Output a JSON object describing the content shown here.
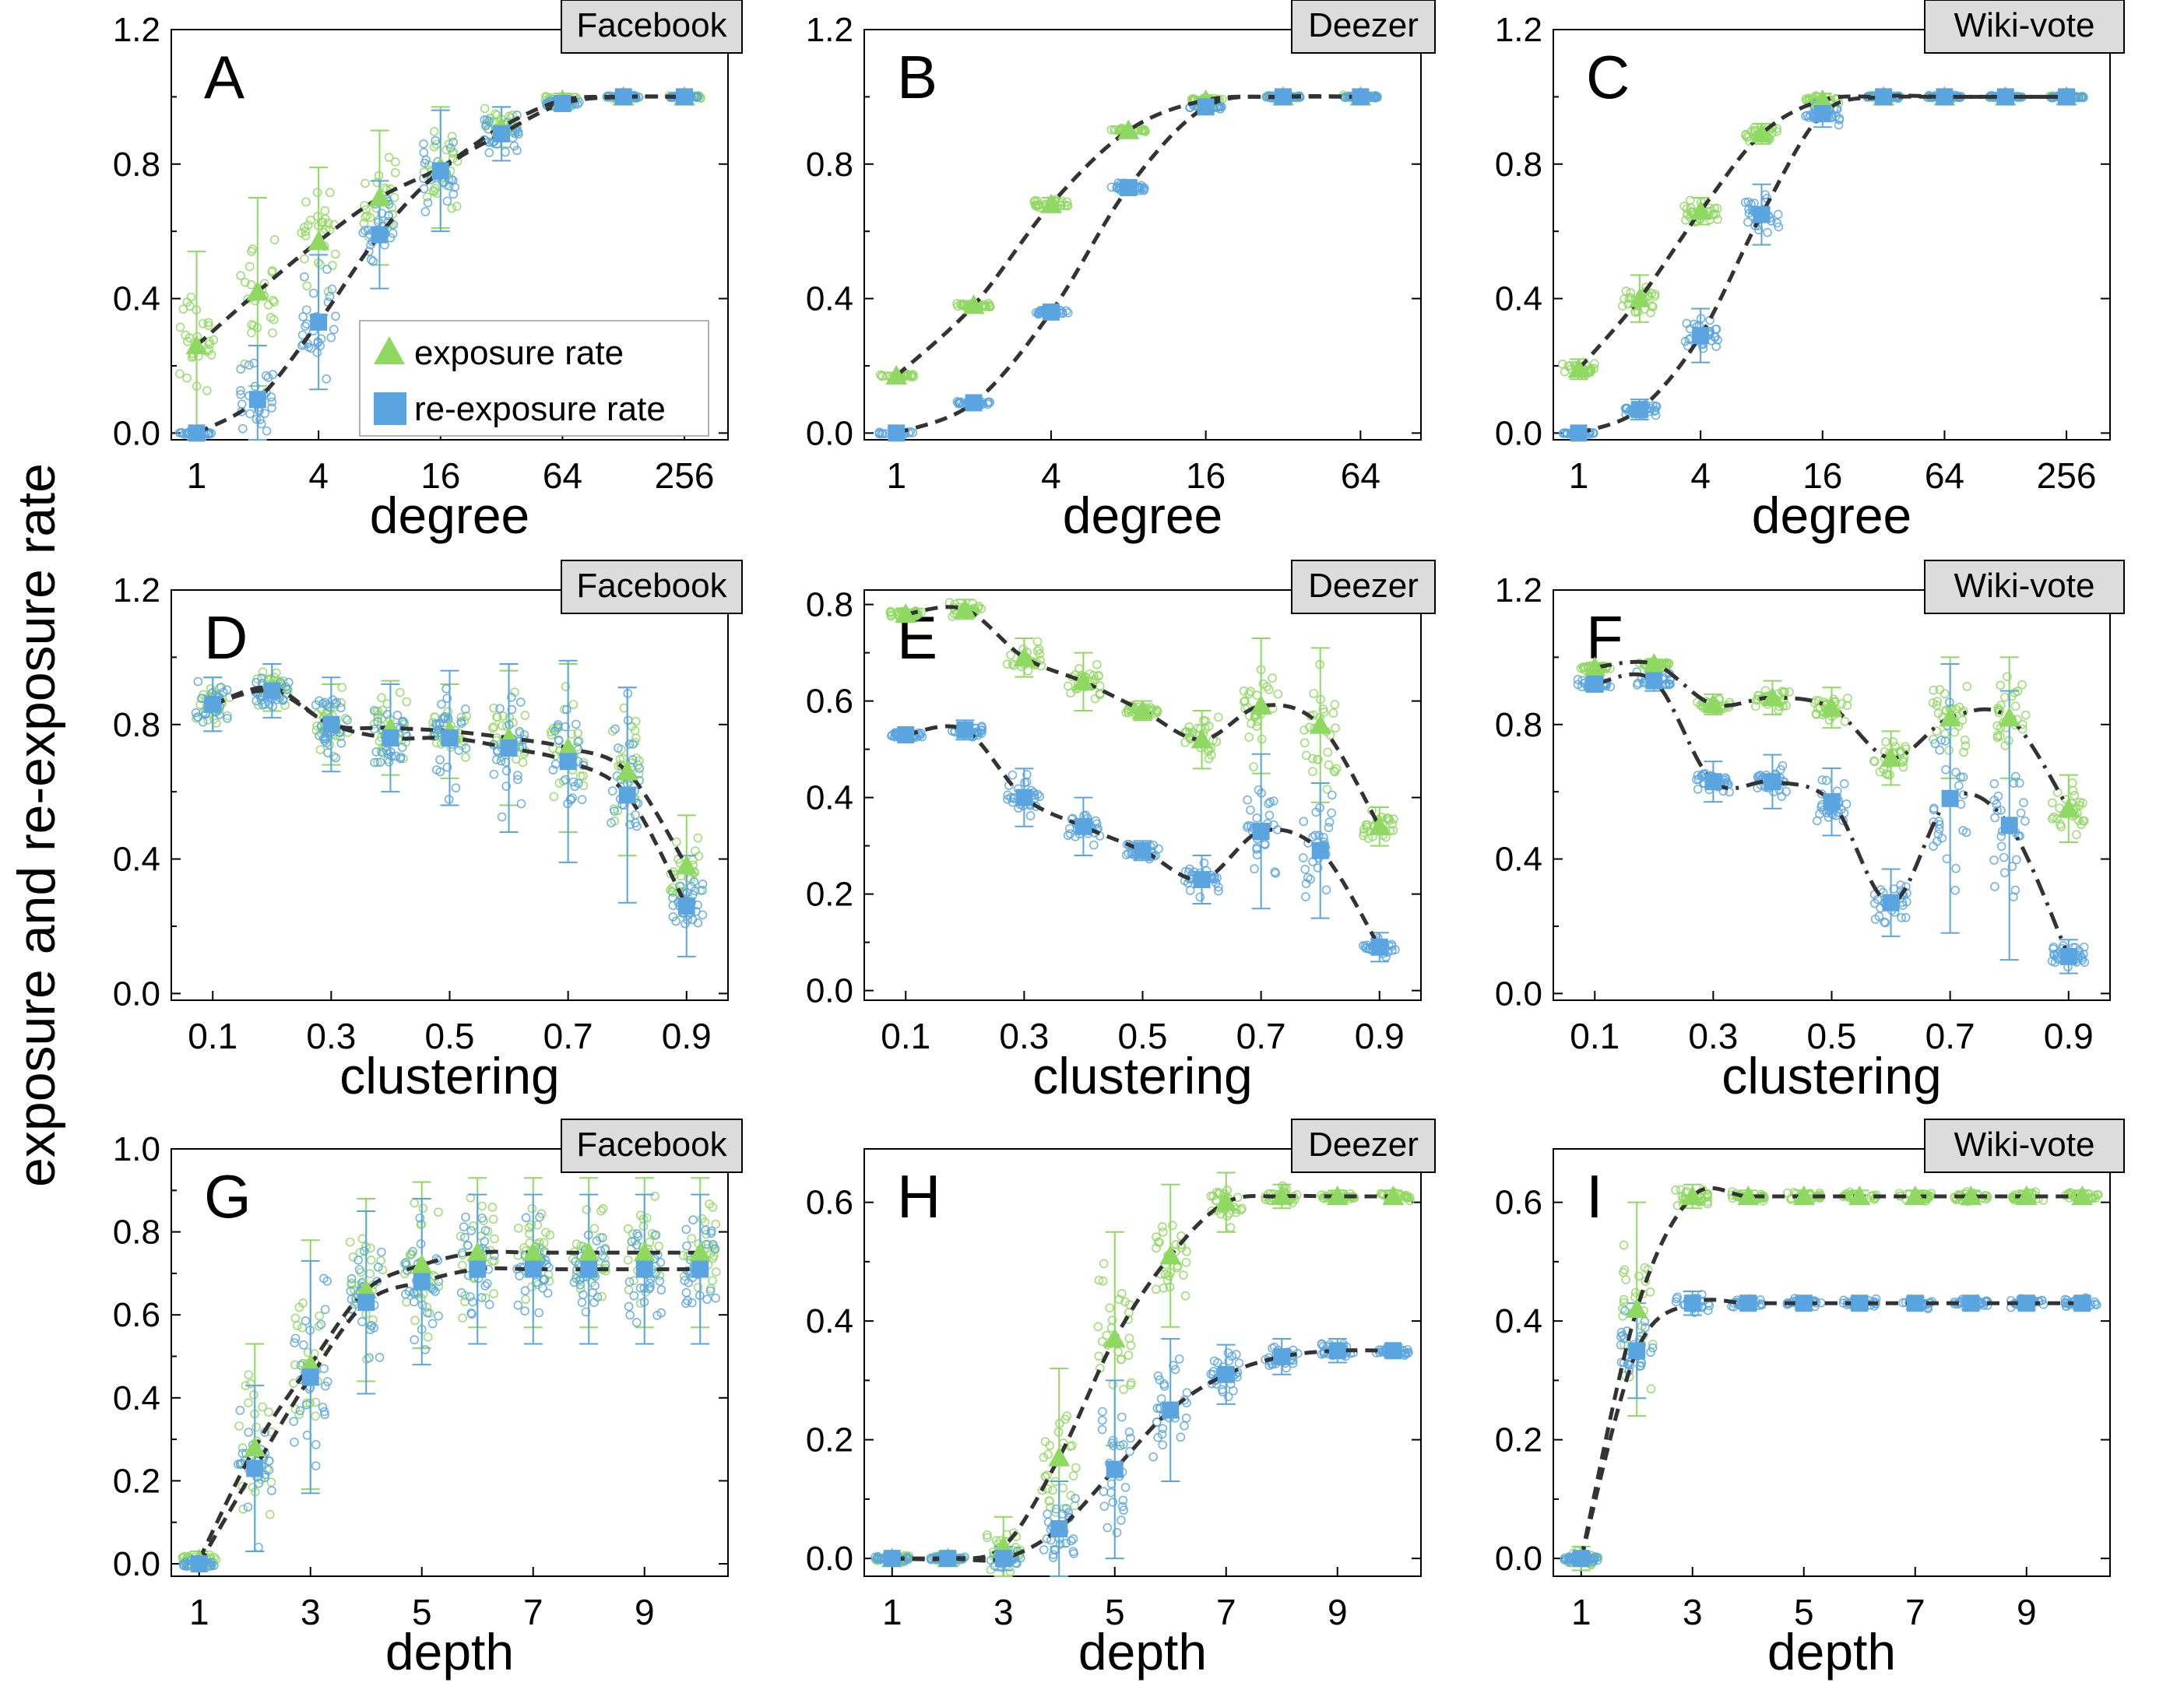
{
  "figure": {
    "y_label": "exposure and re-exposure rate",
    "legend": {
      "exposure": "exposure rate",
      "reexposure": "re-exposure rate"
    }
  },
  "colors": {
    "exposure": "#8fd862",
    "reexposure": "#5aa4e0",
    "fit": "#333333",
    "box": "#dcdcdc"
  },
  "chart_data": [
    {
      "id": "A",
      "panel_label": "A",
      "network": "Facebook",
      "type": "scatter",
      "xscale": "log2",
      "xlabel": "degree",
      "ylabel": "exposure and re-exposure rate",
      "xlim": [
        0.75,
        420
      ],
      "ylim": [
        -0.02,
        1.2
      ],
      "xticks": [
        1,
        4,
        16,
        64,
        256
      ],
      "xtick_labels": [
        "1",
        "4",
        "16",
        "64",
        "256"
      ],
      "yticks": [
        0,
        0.4,
        0.8,
        1.2
      ],
      "ytick_labels": [
        "0.0",
        "0.4",
        "0.8",
        "1.2"
      ],
      "fit_style": "dash",
      "legend": true,
      "series": [
        {
          "name": "exposure rate",
          "marker": "triangle",
          "x": [
            1,
            2,
            4,
            8,
            16,
            32,
            64,
            128,
            256
          ],
          "y": [
            0.26,
            0.42,
            0.57,
            0.7,
            0.79,
            0.91,
            0.99,
            1.0,
            1.0
          ],
          "spread": [
            0.28,
            0.28,
            0.22,
            0.2,
            0.18,
            0.06,
            0.02,
            0.0,
            0.0
          ]
        },
        {
          "name": "re-exposure rate",
          "marker": "square",
          "x": [
            1,
            2,
            4,
            8,
            16,
            32,
            64,
            128,
            256
          ],
          "y": [
            0.0,
            0.1,
            0.33,
            0.59,
            0.78,
            0.89,
            0.98,
            1.0,
            1.0
          ],
          "spread": [
            0.0,
            0.16,
            0.2,
            0.16,
            0.18,
            0.08,
            0.02,
            0.0,
            0.0
          ]
        }
      ]
    },
    {
      "id": "B",
      "panel_label": "B",
      "network": "Deezer",
      "type": "scatter",
      "xscale": "log2",
      "xlabel": "degree",
      "ylabel": "exposure and re-exposure rate",
      "xlim": [
        0.75,
        110
      ],
      "ylim": [
        -0.02,
        1.2
      ],
      "xticks": [
        1,
        4,
        16,
        64
      ],
      "xtick_labels": [
        "1",
        "4",
        "16",
        "64"
      ],
      "yticks": [
        0,
        0.4,
        0.8,
        1.2
      ],
      "ytick_labels": [
        "0.0",
        "0.4",
        "0.8",
        "1.2"
      ],
      "fit_style": "dash",
      "legend": false,
      "series": [
        {
          "name": "exposure rate",
          "marker": "triangle",
          "x": [
            1,
            2,
            4,
            8,
            16,
            32,
            64
          ],
          "y": [
            0.17,
            0.38,
            0.68,
            0.9,
            0.99,
            1.0,
            1.0
          ],
          "spread": [
            0.01,
            0.01,
            0.02,
            0.01,
            0.01,
            0.0,
            0.0
          ]
        },
        {
          "name": "re-exposure rate",
          "marker": "square",
          "x": [
            1,
            2,
            4,
            8,
            16,
            32,
            64
          ],
          "y": [
            0.0,
            0.09,
            0.36,
            0.73,
            0.97,
            1.0,
            1.0
          ],
          "spread": [
            0.0,
            0.01,
            0.01,
            0.02,
            0.01,
            0.0,
            0.0
          ]
        }
      ]
    },
    {
      "id": "C",
      "panel_label": "C",
      "network": "Wiki-vote",
      "type": "scatter",
      "xscale": "log2",
      "xlabel": "degree",
      "ylabel": "exposure and re-exposure rate",
      "xlim": [
        0.75,
        420
      ],
      "ylim": [
        -0.02,
        1.2
      ],
      "xticks": [
        1,
        4,
        16,
        64,
        256
      ],
      "xtick_labels": [
        "1",
        "4",
        "16",
        "64",
        "256"
      ],
      "yticks": [
        0,
        0.4,
        0.8,
        1.2
      ],
      "ytick_labels": [
        "0.0",
        "0.4",
        "0.8",
        "1.2"
      ],
      "fit_style": "dash",
      "legend": false,
      "series": [
        {
          "name": "exposure rate",
          "marker": "triangle",
          "x": [
            1,
            2,
            4,
            8,
            16,
            32,
            64,
            128,
            256
          ],
          "y": [
            0.19,
            0.4,
            0.66,
            0.89,
            0.99,
            1.0,
            1.0,
            1.0,
            1.0
          ],
          "spread": [
            0.03,
            0.07,
            0.04,
            0.03,
            0.02,
            0.0,
            0.0,
            0.0,
            0.0
          ]
        },
        {
          "name": "re-exposure rate",
          "marker": "square",
          "x": [
            1,
            2,
            4,
            8,
            16,
            32,
            64,
            128,
            256
          ],
          "y": [
            0.0,
            0.07,
            0.29,
            0.65,
            0.95,
            1.0,
            1.0,
            1.0,
            1.0
          ],
          "spread": [
            0.0,
            0.03,
            0.08,
            0.09,
            0.04,
            0.0,
            0.0,
            0.0,
            0.0
          ]
        }
      ]
    },
    {
      "id": "D",
      "panel_label": "D",
      "network": "Facebook",
      "type": "scatter",
      "xscale": "linear",
      "xlabel": "clustering",
      "ylabel": "exposure and re-exposure rate",
      "xlim": [
        0.03,
        0.97
      ],
      "ylim": [
        -0.02,
        1.2
      ],
      "xticks": [
        0.1,
        0.3,
        0.5,
        0.7,
        0.9
      ],
      "xtick_labels": [
        "0.1",
        "0.3",
        "0.5",
        "0.7",
        "0.9"
      ],
      "yticks": [
        0,
        0.4,
        0.8,
        1.2
      ],
      "ytick_labels": [
        "0.0",
        "0.4",
        "0.8",
        "1.2"
      ],
      "fit_style": "dash",
      "legend": false,
      "series": [
        {
          "name": "exposure rate",
          "marker": "triangle",
          "x": [
            0.1,
            0.2,
            0.3,
            0.4,
            0.5,
            0.6,
            0.7,
            0.8,
            0.9
          ],
          "y": [
            0.86,
            0.91,
            0.8,
            0.79,
            0.78,
            0.76,
            0.73,
            0.66,
            0.38
          ],
          "spread": [
            0.08,
            0.07,
            0.12,
            0.14,
            0.14,
            0.2,
            0.25,
            0.25,
            0.15
          ]
        },
        {
          "name": "re-exposure rate",
          "marker": "square",
          "x": [
            0.1,
            0.2,
            0.3,
            0.4,
            0.5,
            0.6,
            0.7,
            0.8,
            0.9
          ],
          "y": [
            0.86,
            0.9,
            0.8,
            0.76,
            0.76,
            0.73,
            0.69,
            0.59,
            0.26
          ],
          "spread": [
            0.08,
            0.08,
            0.14,
            0.16,
            0.2,
            0.25,
            0.3,
            0.32,
            0.15
          ]
        }
      ]
    },
    {
      "id": "E",
      "panel_label": "E",
      "network": "Deezer",
      "type": "scatter",
      "xscale": "linear",
      "xlabel": "clustering",
      "ylabel": "exposure and re-exposure rate",
      "xlim": [
        0.03,
        0.97
      ],
      "ylim": [
        -0.02,
        0.83
      ],
      "xticks": [
        0.1,
        0.3,
        0.5,
        0.7,
        0.9
      ],
      "xtick_labels": [
        "0.1",
        "0.3",
        "0.5",
        "0.7",
        "0.9"
      ],
      "yticks": [
        0,
        0.2,
        0.4,
        0.6,
        0.8
      ],
      "ytick_labels": [
        "0.0",
        "0.2",
        "0.4",
        "0.6",
        "0.8"
      ],
      "fit_style": "dash",
      "legend": false,
      "series": [
        {
          "name": "exposure rate",
          "marker": "triangle",
          "x": [
            0.1,
            0.2,
            0.3,
            0.4,
            0.5,
            0.6,
            0.7,
            0.8,
            0.9
          ],
          "y": [
            0.78,
            0.79,
            0.69,
            0.64,
            0.58,
            0.52,
            0.59,
            0.55,
            0.34
          ],
          "spread": [
            0.01,
            0.02,
            0.04,
            0.06,
            0.02,
            0.06,
            0.14,
            0.16,
            0.04
          ]
        },
        {
          "name": "re-exposure rate",
          "marker": "square",
          "x": [
            0.1,
            0.2,
            0.3,
            0.4,
            0.5,
            0.6,
            0.7,
            0.8,
            0.9
          ],
          "y": [
            0.53,
            0.54,
            0.4,
            0.34,
            0.29,
            0.23,
            0.33,
            0.29,
            0.09
          ],
          "spread": [
            0.01,
            0.02,
            0.06,
            0.06,
            0.02,
            0.05,
            0.16,
            0.14,
            0.03
          ]
        }
      ]
    },
    {
      "id": "F",
      "panel_label": "F",
      "network": "Wiki-vote",
      "type": "scatter",
      "xscale": "linear",
      "xlabel": "clustering",
      "ylabel": "exposure and re-exposure rate",
      "xlim": [
        0.03,
        0.97
      ],
      "ylim": [
        -0.02,
        1.2
      ],
      "xticks": [
        0.1,
        0.3,
        0.5,
        0.7,
        0.9
      ],
      "xtick_labels": [
        "0.1",
        "0.3",
        "0.5",
        "0.7",
        "0.9"
      ],
      "yticks": [
        0,
        0.4,
        0.8,
        1.2
      ],
      "ytick_labels": [
        "0.0",
        "0.4",
        "0.8",
        "1.2"
      ],
      "fit_style": "dashdot",
      "legend": false,
      "series": [
        {
          "name": "exposure rate",
          "marker": "triangle",
          "x": [
            0.1,
            0.2,
            0.3,
            0.4,
            0.5,
            0.6,
            0.7,
            0.8,
            0.9
          ],
          "y": [
            0.97,
            0.98,
            0.86,
            0.88,
            0.85,
            0.7,
            0.82,
            0.82,
            0.55
          ],
          "spread": [
            0.01,
            0.01,
            0.03,
            0.05,
            0.06,
            0.08,
            0.18,
            0.18,
            0.1
          ]
        },
        {
          "name": "re-exposure rate",
          "marker": "square",
          "x": [
            0.1,
            0.2,
            0.3,
            0.4,
            0.5,
            0.6,
            0.7,
            0.8,
            0.9
          ],
          "y": [
            0.92,
            0.93,
            0.63,
            0.63,
            0.57,
            0.27,
            0.58,
            0.5,
            0.11
          ],
          "spread": [
            0.02,
            0.03,
            0.06,
            0.08,
            0.1,
            0.1,
            0.4,
            0.4,
            0.05
          ]
        }
      ]
    },
    {
      "id": "G",
      "panel_label": "G",
      "network": "Facebook",
      "type": "scatter",
      "xscale": "linear",
      "xlabel": "depth",
      "ylabel": "exposure and re-exposure rate",
      "xlim": [
        0.5,
        10.5
      ],
      "ylim": [
        -0.03,
        1.0
      ],
      "xticks": [
        1,
        3,
        5,
        7,
        9
      ],
      "xtick_labels": [
        "1",
        "3",
        "5",
        "7",
        "9"
      ],
      "yticks": [
        0,
        0.2,
        0.4,
        0.6,
        0.8,
        1.0
      ],
      "ytick_labels": [
        "0.0",
        "0.2",
        "0.4",
        "0.6",
        "0.8",
        "1.0"
      ],
      "fit_style": "dash",
      "legend": false,
      "series": [
        {
          "name": "exposure rate",
          "marker": "triangle",
          "x": [
            1,
            2,
            3,
            4,
            5,
            6,
            7,
            8,
            9,
            10
          ],
          "y": [
            0.01,
            0.28,
            0.48,
            0.66,
            0.72,
            0.75,
            0.75,
            0.75,
            0.75,
            0.75
          ],
          "spread": [
            0.02,
            0.25,
            0.3,
            0.22,
            0.2,
            0.18,
            0.18,
            0.18,
            0.18,
            0.18
          ]
        },
        {
          "name": "re-exposure rate",
          "marker": "square",
          "x": [
            1,
            2,
            3,
            4,
            5,
            6,
            7,
            8,
            9,
            10
          ],
          "y": [
            0.0,
            0.23,
            0.45,
            0.63,
            0.68,
            0.71,
            0.71,
            0.71,
            0.71,
            0.71
          ],
          "spread": [
            0.01,
            0.2,
            0.28,
            0.22,
            0.2,
            0.18,
            0.18,
            0.18,
            0.18,
            0.18
          ]
        }
      ]
    },
    {
      "id": "H",
      "panel_label": "H",
      "network": "Deezer",
      "type": "scatter",
      "xscale": "linear",
      "xlabel": "depth",
      "ylabel": "exposure and re-exposure rate",
      "xlim": [
        0.5,
        10.5
      ],
      "ylim": [
        -0.03,
        0.69
      ],
      "xticks": [
        1,
        3,
        5,
        7,
        9
      ],
      "xtick_labels": [
        "1",
        "3",
        "5",
        "7",
        "9"
      ],
      "yticks": [
        0,
        0.2,
        0.4,
        0.6
      ],
      "ytick_labels": [
        "0.0",
        "0.2",
        "0.4",
        "0.6"
      ],
      "fit_style": "dash",
      "legend": false,
      "series": [
        {
          "name": "exposure rate",
          "marker": "triangle",
          "x": [
            1,
            2,
            3,
            4,
            5,
            6,
            7,
            8,
            9,
            10
          ],
          "y": [
            0.0,
            0.0,
            0.02,
            0.17,
            0.37,
            0.51,
            0.6,
            0.61,
            0.61,
            0.61
          ],
          "spread": [
            0.005,
            0.01,
            0.05,
            0.15,
            0.18,
            0.12,
            0.05,
            0.02,
            0.01,
            0.01
          ]
        },
        {
          "name": "re-exposure rate",
          "marker": "square",
          "x": [
            1,
            2,
            3,
            4,
            5,
            6,
            7,
            8,
            9,
            10
          ],
          "y": [
            0.0,
            0.0,
            0.0,
            0.05,
            0.15,
            0.25,
            0.31,
            0.34,
            0.35,
            0.35
          ],
          "spread": [
            0.005,
            0.005,
            0.02,
            0.08,
            0.15,
            0.12,
            0.05,
            0.03,
            0.02,
            0.01
          ]
        }
      ]
    },
    {
      "id": "I",
      "panel_label": "I",
      "network": "Wiki-vote",
      "type": "scatter",
      "xscale": "linear",
      "xlabel": "depth",
      "ylabel": "exposure and re-exposure rate",
      "xlim": [
        0.5,
        10.5
      ],
      "ylim": [
        -0.03,
        0.69
      ],
      "xticks": [
        1,
        3,
        5,
        7,
        9
      ],
      "xtick_labels": [
        "1",
        "3",
        "5",
        "7",
        "9"
      ],
      "yticks": [
        0,
        0.2,
        0.4,
        0.6
      ],
      "ytick_labels": [
        "0.0",
        "0.2",
        "0.4",
        "0.6"
      ],
      "fit_style": "dash",
      "legend": false,
      "series": [
        {
          "name": "exposure rate",
          "marker": "triangle",
          "x": [
            1,
            2,
            3,
            4,
            5,
            6,
            7,
            8,
            9,
            10
          ],
          "y": [
            0.0,
            0.42,
            0.61,
            0.61,
            0.61,
            0.61,
            0.61,
            0.61,
            0.61,
            0.61
          ],
          "spread": [
            0.02,
            0.18,
            0.02,
            0.01,
            0.01,
            0.01,
            0.01,
            0.01,
            0.01,
            0.01
          ]
        },
        {
          "name": "re-exposure rate",
          "marker": "square",
          "x": [
            1,
            2,
            3,
            4,
            5,
            6,
            7,
            8,
            9,
            10
          ],
          "y": [
            0.0,
            0.35,
            0.43,
            0.43,
            0.43,
            0.43,
            0.43,
            0.43,
            0.43,
            0.43
          ],
          "spread": [
            0.01,
            0.08,
            0.02,
            0.01,
            0.01,
            0.01,
            0.01,
            0.01,
            0.01,
            0.01
          ]
        }
      ]
    }
  ]
}
